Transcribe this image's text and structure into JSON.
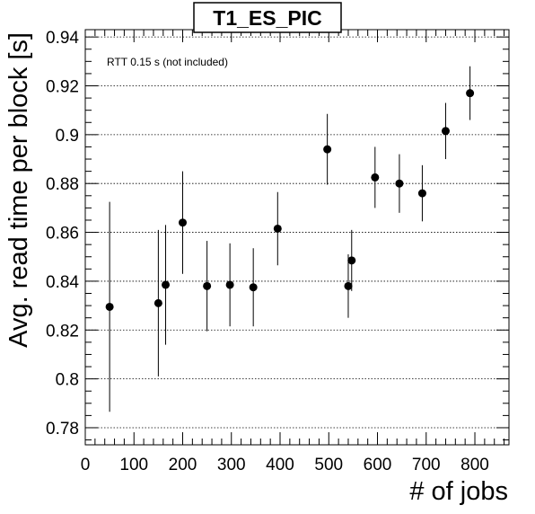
{
  "chart_data": {
    "type": "scatter",
    "title": "T1_ES_PIC",
    "xlabel": "# of jobs",
    "ylabel": "Avg. read time per block [s]",
    "annotation": "RTT 0.15 s (not included)",
    "xlim": [
      0,
      870
    ],
    "ylim": [
      0.773,
      0.943
    ],
    "x_ticks": [
      "0",
      "100",
      "200",
      "300",
      "400",
      "500",
      "600",
      "700",
      "800"
    ],
    "y_ticks": [
      "0.78",
      "0.8",
      "0.82",
      "0.84",
      "0.86",
      "0.88",
      "0.9",
      "0.92",
      "0.94"
    ],
    "grid": "horizontal dotted",
    "points": [
      {
        "x": 50,
        "y": 0.8295,
        "err": 0.043
      },
      {
        "x": 150,
        "y": 0.831,
        "err": 0.03
      },
      {
        "x": 165,
        "y": 0.8385,
        "err": 0.0245
      },
      {
        "x": 200,
        "y": 0.864,
        "err": 0.021
      },
      {
        "x": 250,
        "y": 0.838,
        "err": 0.0185
      },
      {
        "x": 297,
        "y": 0.8385,
        "err": 0.017
      },
      {
        "x": 345,
        "y": 0.8375,
        "err": 0.016
      },
      {
        "x": 395,
        "y": 0.8615,
        "err": 0.015
      },
      {
        "x": 497,
        "y": 0.894,
        "err": 0.0145
      },
      {
        "x": 540,
        "y": 0.838,
        "err": 0.013
      },
      {
        "x": 547,
        "y": 0.8485,
        "err": 0.0125
      },
      {
        "x": 595,
        "y": 0.8825,
        "err": 0.0125
      },
      {
        "x": 645,
        "y": 0.88,
        "err": 0.012
      },
      {
        "x": 692,
        "y": 0.876,
        "err": 0.0115
      },
      {
        "x": 740,
        "y": 0.9015,
        "err": 0.0115
      },
      {
        "x": 790,
        "y": 0.917,
        "err": 0.011
      }
    ]
  }
}
